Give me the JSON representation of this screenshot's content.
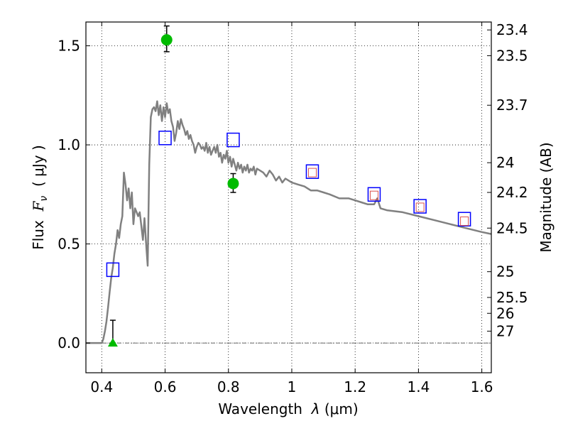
{
  "chart_data": {
    "type": "scatter",
    "xlabel_prefix": "Wavelength  ",
    "xlabel_var": "λ",
    "xlabel_unit": " (μm)",
    "ylabel_prefix": "Flux  ",
    "ylabel_var": "F",
    "ylabel_sub": "ν",
    "ylabel_unit": "  ( μJy )",
    "y2label": "Magnitude (AB)",
    "xlim": [
      0.35,
      1.63
    ],
    "ylim": [
      -0.15,
      1.62
    ],
    "grid": true,
    "x_ticks": [
      0.4,
      0.6,
      0.8,
      1.0,
      1.2,
      1.4,
      1.6
    ],
    "x_tick_labels": [
      "0.4",
      "0.6",
      "0.8",
      "1",
      "1.2",
      "1.4",
      "1.6"
    ],
    "y_ticks": [
      0.0,
      0.5,
      1.0,
      1.5
    ],
    "y_tick_labels": [
      "0.0",
      "0.5",
      "1.0",
      "1.5"
    ],
    "y2_ticks": [
      {
        "label": "23.4",
        "flux": 1.58
      },
      {
        "label": "23.5",
        "flux": 1.45
      },
      {
        "label": "23.7",
        "flux": 1.2
      },
      {
        "label": "24",
        "flux": 0.91
      },
      {
        "label": "24.2",
        "flux": 0.76
      },
      {
        "label": "24.5",
        "flux": 0.58
      },
      {
        "label": "25",
        "flux": 0.36
      },
      {
        "label": "25.5",
        "flux": 0.23
      },
      {
        "label": "26",
        "flux": 0.15
      },
      {
        "label": "27",
        "flux": 0.06
      }
    ],
    "colors": {
      "model": "#808080",
      "detection": "#00bb00",
      "model_box": "#0000ff",
      "inner_box": "#d9534f",
      "errorbar": "#000000",
      "zero_line": "#333333"
    },
    "model_sed": {
      "x": [
        0.35,
        0.4,
        0.405,
        0.41,
        0.415,
        0.42,
        0.425,
        0.43,
        0.435,
        0.44,
        0.445,
        0.45,
        0.455,
        0.46,
        0.465,
        0.47,
        0.475,
        0.48,
        0.485,
        0.49,
        0.495,
        0.5,
        0.505,
        0.51,
        0.515,
        0.52,
        0.525,
        0.53,
        0.535,
        0.54,
        0.545,
        0.55,
        0.555,
        0.56,
        0.565,
        0.57,
        0.575,
        0.58,
        0.585,
        0.59,
        0.595,
        0.6,
        0.605,
        0.61,
        0.615,
        0.62,
        0.625,
        0.63,
        0.635,
        0.64,
        0.645,
        0.65,
        0.655,
        0.66,
        0.665,
        0.67,
        0.675,
        0.68,
        0.685,
        0.69,
        0.695,
        0.7,
        0.705,
        0.71,
        0.715,
        0.72,
        0.725,
        0.73,
        0.735,
        0.74,
        0.745,
        0.75,
        0.755,
        0.76,
        0.765,
        0.77,
        0.775,
        0.78,
        0.785,
        0.79,
        0.795,
        0.8,
        0.805,
        0.81,
        0.815,
        0.82,
        0.825,
        0.83,
        0.835,
        0.84,
        0.845,
        0.85,
        0.855,
        0.86,
        0.865,
        0.87,
        0.875,
        0.88,
        0.885,
        0.89,
        0.9,
        0.91,
        0.92,
        0.93,
        0.94,
        0.95,
        0.96,
        0.97,
        0.98,
        0.99,
        1.0,
        1.02,
        1.04,
        1.06,
        1.08,
        1.1,
        1.12,
        1.15,
        1.18,
        1.2,
        1.22,
        1.24,
        1.26,
        1.27,
        1.28,
        1.3,
        1.35,
        1.4,
        1.45,
        1.5,
        1.55,
        1.6,
        1.63
      ],
      "y": [
        0.0,
        0.0,
        0.02,
        0.06,
        0.11,
        0.18,
        0.26,
        0.33,
        0.38,
        0.45,
        0.5,
        0.57,
        0.53,
        0.6,
        0.64,
        0.86,
        0.8,
        0.72,
        0.78,
        0.68,
        0.76,
        0.6,
        0.68,
        0.66,
        0.64,
        0.66,
        0.59,
        0.52,
        0.63,
        0.5,
        0.39,
        0.9,
        1.14,
        1.18,
        1.19,
        1.17,
        1.22,
        1.15,
        1.2,
        1.12,
        1.19,
        1.14,
        1.21,
        1.16,
        1.18,
        1.12,
        1.09,
        1.02,
        1.06,
        1.12,
        1.08,
        1.13,
        1.1,
        1.08,
        1.05,
        1.07,
        1.03,
        1.05,
        1.02,
        1.0,
        0.96,
        0.99,
        1.01,
        1.0,
        0.98,
        0.99,
        0.97,
        1.01,
        0.96,
        0.99,
        0.95,
        0.97,
        0.99,
        0.96,
        1.0,
        0.94,
        0.96,
        0.91,
        0.95,
        0.93,
        0.97,
        0.91,
        0.94,
        0.89,
        0.93,
        0.9,
        0.87,
        0.91,
        0.88,
        0.9,
        0.86,
        0.89,
        0.87,
        0.9,
        0.86,
        0.88,
        0.87,
        0.89,
        0.85,
        0.88,
        0.87,
        0.86,
        0.84,
        0.87,
        0.85,
        0.82,
        0.84,
        0.81,
        0.83,
        0.82,
        0.81,
        0.8,
        0.79,
        0.77,
        0.77,
        0.76,
        0.75,
        0.73,
        0.73,
        0.72,
        0.71,
        0.7,
        0.7,
        0.73,
        0.68,
        0.67,
        0.66,
        0.64,
        0.62,
        0.6,
        0.58,
        0.56,
        0.55
      ]
    },
    "detections": [
      {
        "x": 0.435,
        "y": 0.0,
        "marker": "triangle",
        "err_lo": 0.0,
        "err_hi": 0.115
      },
      {
        "x": 0.605,
        "y": 1.53,
        "marker": "circle",
        "err_lo": 1.47,
        "err_hi": 1.6
      },
      {
        "x": 0.815,
        "y": 0.805,
        "marker": "circle",
        "err_lo": 0.76,
        "err_hi": 0.855
      }
    ],
    "model_photometry": [
      {
        "x": 0.435,
        "y": 0.37
      },
      {
        "x": 0.6,
        "y": 1.035
      },
      {
        "x": 0.815,
        "y": 1.025
      },
      {
        "x": 1.065,
        "y": 0.865
      },
      {
        "x": 1.26,
        "y": 0.75
      },
      {
        "x": 1.405,
        "y": 0.69
      },
      {
        "x": 1.545,
        "y": 0.625
      }
    ],
    "inner_photometry": [
      {
        "x": 1.065,
        "y": 0.86
      },
      {
        "x": 1.26,
        "y": 0.745
      },
      {
        "x": 1.405,
        "y": 0.685
      },
      {
        "x": 1.545,
        "y": 0.615
      }
    ]
  }
}
